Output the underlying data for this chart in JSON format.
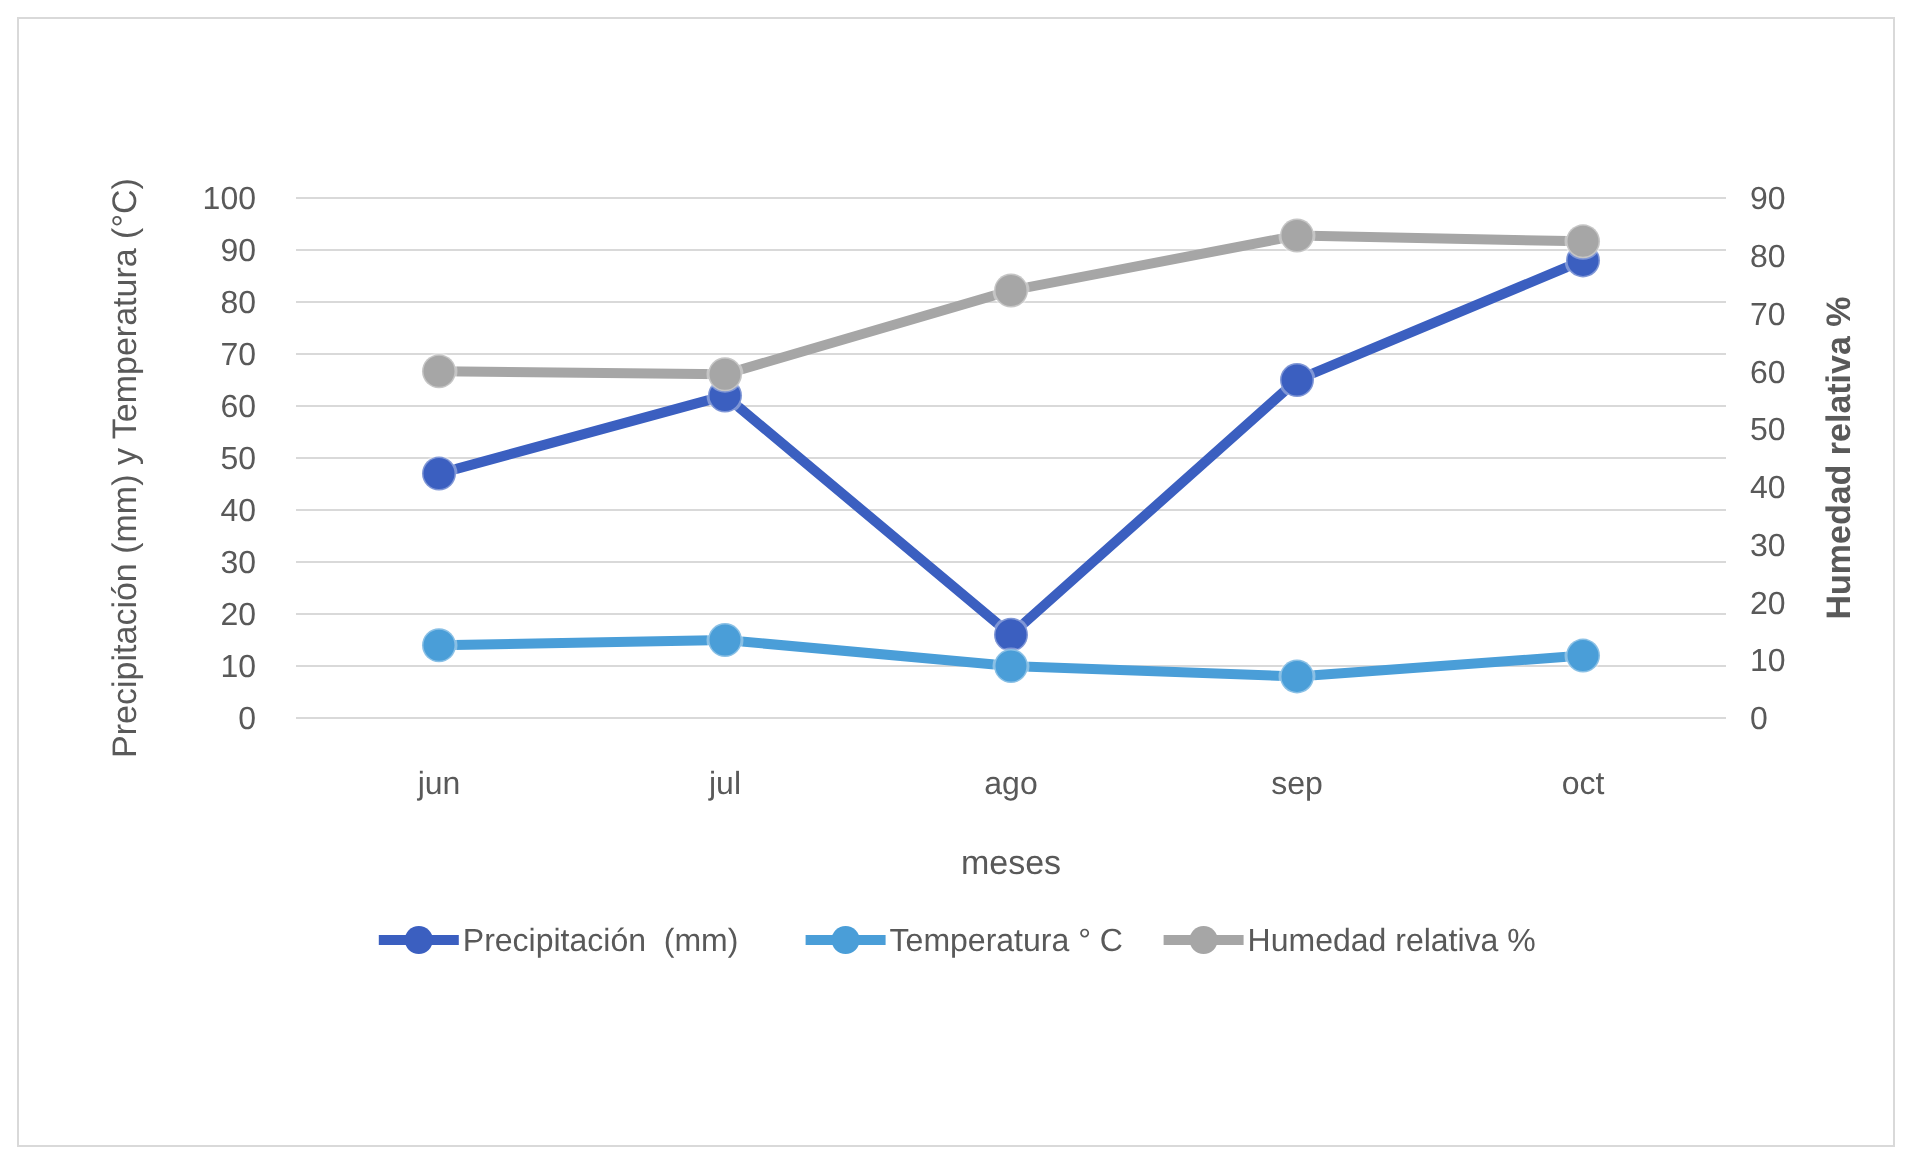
{
  "chart_data": {
    "type": "line",
    "xlabel": "meses",
    "ylabel": "Precipitación (mm) y Temperatura (°C)",
    "y2label": "Humedad relativa %",
    "categories": [
      "jun",
      "jul",
      "ago",
      "sep",
      "oct"
    ],
    "series": [
      {
        "name": "Precipitación  (mm)",
        "color": "#3b5fc0",
        "values": [
          47,
          62,
          16,
          65,
          88
        ]
      },
      {
        "name": "Temperatura ° C",
        "color": "#4a9ed8",
        "values": [
          14,
          15,
          10,
          8,
          12
        ]
      },
      {
        "name": "Humedad relativa %",
        "color": "#a6a6a6",
        "values": [
          60,
          59.5,
          74,
          83.5,
          82.5
        ],
        "axis": "y2"
      }
    ],
    "ylim": [
      0,
      100
    ],
    "yticks": [
      0,
      10,
      20,
      30,
      40,
      50,
      60,
      70,
      80,
      90,
      100
    ],
    "y2lim": [
      0,
      90
    ],
    "y2ticks": [
      0,
      10,
      20,
      30,
      40,
      50,
      60,
      70,
      80,
      90
    ],
    "grid": "y",
    "legend": "bottom",
    "marker": "circle",
    "line_style": "solid"
  }
}
